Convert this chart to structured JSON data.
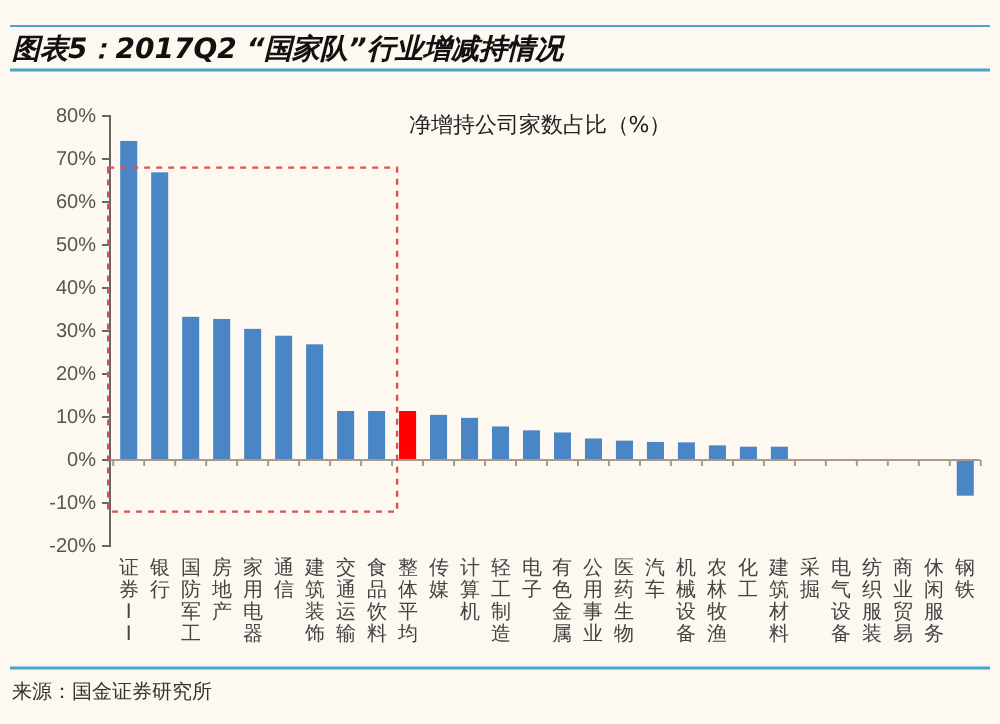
{
  "chart_data": {
    "type": "bar",
    "title": "图表5：2017Q2 “国家队”行业增减持情况",
    "subtitle": "净增持公司家数占比（%）",
    "categories": [
      "证券II",
      "银行",
      "国防军工",
      "房地产",
      "家用电器",
      "通信",
      "建筑装饰",
      "交通运输",
      "食品饮料",
      "整体平均",
      "传媒",
      "计算机",
      "轻工制造",
      "电子",
      "有色金属",
      "公用事业",
      "医药生物",
      "汽车",
      "机械设备",
      "农林牧渔",
      "化工",
      "建筑材料",
      "采掘",
      "电气设备",
      "纺织服装",
      "商业贸易",
      "休闲服务",
      "钢铁"
    ],
    "values": [
      74.2,
      66.9,
      33.3,
      32.8,
      30.5,
      28.9,
      26.9,
      11.4,
      11.4,
      11.4,
      10.5,
      9.8,
      7.8,
      6.9,
      6.4,
      5.0,
      4.5,
      4.2,
      4.1,
      3.4,
      3.1,
      3.1,
      0,
      0,
      0,
      0,
      0,
      -8.3
    ],
    "colors": [
      "#4a86c5",
      "#4a86c5",
      "#4a86c5",
      "#4a86c5",
      "#4a86c5",
      "#4a86c5",
      "#4a86c5",
      "#4a86c5",
      "#4a86c5",
      "#ff0000",
      "#4a86c5",
      "#4a86c5",
      "#4a86c5",
      "#4a86c5",
      "#4a86c5",
      "#4a86c5",
      "#4a86c5",
      "#4a86c5",
      "#4a86c5",
      "#4a86c5",
      "#4a86c5",
      "#4a86c5",
      "#4a86c5",
      "#4a86c5",
      "#4a86c5",
      "#4a86c5",
      "#4a86c5",
      "#4a86c5"
    ],
    "ylim": [
      -20,
      80
    ],
    "yticks": [
      {
        "value": -20,
        "label": "-20%"
      },
      {
        "value": -10,
        "label": "-10%"
      },
      {
        "value": 0,
        "label": "0%"
      },
      {
        "value": 10,
        "label": "10%"
      },
      {
        "value": 20,
        "label": "20%"
      },
      {
        "value": 30,
        "label": "30%"
      },
      {
        "value": 40,
        "label": "40%"
      },
      {
        "value": 50,
        "label": "50%"
      },
      {
        "value": 60,
        "label": "60%"
      },
      {
        "value": 70,
        "label": "70%"
      },
      {
        "value": 80,
        "label": "80%"
      }
    ],
    "annotations": [
      "来源：国金证券研究所"
    ]
  }
}
